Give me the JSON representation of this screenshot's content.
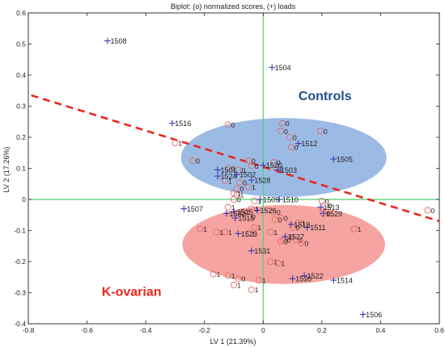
{
  "chart_data": {
    "type": "scatter",
    "title": "Biplot: (o) normalized scores, (+) loads",
    "xlabel": "LV 1 (21.39%)",
    "ylabel": "LV 2 (17.26%)",
    "xlim": [
      -0.8,
      0.6
    ],
    "ylim": [
      -0.4,
      0.6
    ],
    "xticks": [
      -0.8,
      -0.6,
      -0.4,
      -0.2,
      0,
      0.2,
      0.4,
      0.6
    ],
    "yticks": [
      -0.4,
      -0.3,
      -0.2,
      -0.1,
      0,
      0.1,
      0.2,
      0.3,
      0.4,
      0.5,
      0.6
    ],
    "xtick_labels": [
      "-0.8",
      "-0.6",
      "-0.4",
      "-0.2",
      "0",
      "0.2",
      "0.4",
      "0.6"
    ],
    "ytick_labels": [
      "-0.4",
      "-0.3",
      "-0.2",
      "-0.1",
      "0",
      "0.1",
      "0.2",
      "0.3",
      "0.4",
      "0.5",
      "0.6"
    ],
    "grid": false,
    "group_labels": [
      {
        "text": "Controls",
        "x": 0.12,
        "y": 0.32,
        "color": "#1f4e8c"
      },
      {
        "text": "K-ovarian",
        "x": -0.55,
        "y": -0.31,
        "color": "#e8281e"
      }
    ],
    "ellipses": [
      {
        "group": "Controls",
        "cx": 0.07,
        "cy": 0.135,
        "rx": 0.35,
        "ry": 0.127,
        "color": "#7fa8de"
      },
      {
        "group": "K-ovarian",
        "cx": 0.07,
        "cy": -0.145,
        "rx": 0.345,
        "ry": 0.127,
        "color": "#f28b87"
      }
    ],
    "discriminant_line": {
      "color": "#e8281e",
      "x": [
        -0.79,
        0.6
      ],
      "y": [
        0.335,
        -0.07
      ]
    },
    "reference_lines": {
      "x": 0,
      "y": 0,
      "color": "#4ed36e"
    },
    "loads": [
      {
        "label": "1508",
        "x": -0.53,
        "y": 0.51
      },
      {
        "label": "1504",
        "x": 0.03,
        "y": 0.425
      },
      {
        "label": "1516",
        "x": -0.31,
        "y": 0.245
      },
      {
        "label": "1512",
        "x": 0.12,
        "y": 0.18
      },
      {
        "label": "1505",
        "x": 0.24,
        "y": 0.13
      },
      {
        "label": "1520",
        "x": 0.0,
        "y": 0.11
      },
      {
        "label": "1503",
        "x": 0.05,
        "y": 0.095
      },
      {
        "label": "1501",
        "x": -0.155,
        "y": 0.095
      },
      {
        "label": "1502",
        "x": -0.09,
        "y": 0.08
      },
      {
        "label": "1524",
        "x": -0.155,
        "y": 0.075
      },
      {
        "label": "1528",
        "x": -0.04,
        "y": 0.062
      },
      {
        "label": "1507",
        "x": -0.27,
        "y": -0.03
      },
      {
        "label": "1509",
        "x": -0.01,
        "y": 0.0
      },
      {
        "label": "1510",
        "x": 0.055,
        "y": 0.0
      },
      {
        "label": "1513",
        "x": 0.195,
        "y": -0.025
      },
      {
        "label": "1525",
        "x": -0.1,
        "y": -0.04
      },
      {
        "label": "1532",
        "x": -0.125,
        "y": -0.045
      },
      {
        "label": "1526",
        "x": -0.02,
        "y": -0.035
      },
      {
        "label": "1515",
        "x": -0.095,
        "y": -0.06
      },
      {
        "label": "1529",
        "x": 0.205,
        "y": -0.045
      },
      {
        "label": "1511",
        "x": 0.15,
        "y": -0.09
      },
      {
        "label": "1519",
        "x": 0.095,
        "y": -0.08
      },
      {
        "label": "1523",
        "x": -0.085,
        "y": -0.11
      },
      {
        "label": "1527",
        "x": 0.075,
        "y": -0.12
      },
      {
        "label": "1531",
        "x": -0.04,
        "y": -0.165
      },
      {
        "label": "1522",
        "x": 0.14,
        "y": -0.245
      },
      {
        "label": "1530",
        "x": 0.1,
        "y": -0.255
      },
      {
        "label": "1514",
        "x": 0.24,
        "y": -0.26
      },
      {
        "label": "1506",
        "x": 0.34,
        "y": -0.37
      }
    ],
    "scores": [
      {
        "label": "0",
        "x": -0.12,
        "y": 0.24
      },
      {
        "label": "0",
        "x": 0.065,
        "y": 0.245
      },
      {
        "label": "0",
        "x": 0.06,
        "y": 0.22
      },
      {
        "label": "0",
        "x": 0.195,
        "y": 0.22
      },
      {
        "label": "0",
        "x": 0.09,
        "y": 0.2
      },
      {
        "label": "0",
        "x": 0.095,
        "y": 0.168
      },
      {
        "label": "1",
        "x": -0.3,
        "y": 0.182
      },
      {
        "label": "0",
        "x": -0.24,
        "y": 0.125
      },
      {
        "label": "0",
        "x": -0.05,
        "y": 0.125
      },
      {
        "label": "0",
        "x": 0.035,
        "y": 0.12
      },
      {
        "label": "0",
        "x": -0.04,
        "y": 0.108
      },
      {
        "label": "0",
        "x": -0.12,
        "y": 0.1
      },
      {
        "label": "0",
        "x": 0.045,
        "y": 0.1
      },
      {
        "label": "0",
        "x": -0.085,
        "y": 0.095
      },
      {
        "label": "1",
        "x": -0.13,
        "y": 0.06
      },
      {
        "label": "0",
        "x": -0.08,
        "y": 0.055
      },
      {
        "label": "1",
        "x": -0.05,
        "y": 0.04
      },
      {
        "label": "0",
        "x": -0.09,
        "y": 0.035
      },
      {
        "label": "1",
        "x": -0.09,
        "y": 0.015
      },
      {
        "label": "1",
        "x": -0.1,
        "y": 0.02
      },
      {
        "label": "0",
        "x": -0.1,
        "y": 0.0
      },
      {
        "label": "1",
        "x": -0.03,
        "y": -0.005
      },
      {
        "label": "0",
        "x": 0.2,
        "y": -0.005
      },
      {
        "label": "0",
        "x": 0.21,
        "y": -0.02
      },
      {
        "label": "0",
        "x": 0.205,
        "y": -0.045
      },
      {
        "label": "0",
        "x": 0.56,
        "y": -0.035
      },
      {
        "label": "1",
        "x": -0.12,
        "y": -0.025
      },
      {
        "label": "1",
        "x": -0.04,
        "y": -0.03
      },
      {
        "label": "1",
        "x": -0.07,
        "y": -0.04
      },
      {
        "label": "0",
        "x": 0.035,
        "y": -0.04
      },
      {
        "label": "0",
        "x": -0.05,
        "y": -0.055
      },
      {
        "label": "0",
        "x": 0.04,
        "y": -0.065
      },
      {
        "label": "0",
        "x": 0.06,
        "y": -0.06
      },
      {
        "label": "1",
        "x": 0.12,
        "y": -0.075
      },
      {
        "label": "0",
        "x": 0.1,
        "y": -0.09
      },
      {
        "label": "1",
        "x": -0.03,
        "y": -0.09
      },
      {
        "label": "1",
        "x": -0.215,
        "y": -0.095
      },
      {
        "label": "1",
        "x": -0.16,
        "y": -0.105
      },
      {
        "label": "1",
        "x": -0.13,
        "y": -0.105
      },
      {
        "label": "1",
        "x": -0.05,
        "y": -0.11
      },
      {
        "label": "1",
        "x": 0.025,
        "y": -0.105
      },
      {
        "label": "0",
        "x": 0.08,
        "y": -0.12
      },
      {
        "label": "0",
        "x": 0.07,
        "y": -0.13
      },
      {
        "label": "0",
        "x": 0.06,
        "y": -0.135
      },
      {
        "label": "1",
        "x": 0.11,
        "y": -0.13
      },
      {
        "label": "0",
        "x": 0.13,
        "y": -0.14
      },
      {
        "label": "1",
        "x": 0.31,
        "y": -0.095
      },
      {
        "label": "1",
        "x": 0.025,
        "y": -0.2
      },
      {
        "label": "1",
        "x": 0.05,
        "y": -0.205
      },
      {
        "label": "1",
        "x": -0.17,
        "y": -0.24
      },
      {
        "label": "1",
        "x": -0.12,
        "y": -0.245
      },
      {
        "label": "0",
        "x": -0.085,
        "y": -0.255
      },
      {
        "label": "1",
        "x": -0.015,
        "y": -0.26
      },
      {
        "label": "1",
        "x": -0.1,
        "y": -0.275
      },
      {
        "label": "1",
        "x": -0.04,
        "y": -0.29
      }
    ],
    "colors": {
      "loads": "#3b3bb5",
      "scores": "#e06a6a",
      "load_text": "#222222",
      "score_text": "#222222",
      "axis": "#222222"
    }
  }
}
